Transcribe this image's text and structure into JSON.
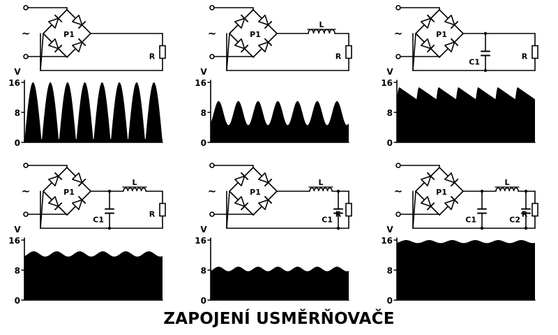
{
  "caption": "ZAPOJENÍ USMĚRŇOVAČE",
  "labels": {
    "tilde": "~",
    "bridge": "P1",
    "inductor": "L",
    "load": "R",
    "cap1": "C1",
    "cap2": "C2",
    "unit": "V",
    "ticks": [
      "16",
      "8",
      "0"
    ]
  },
  "colors": {
    "ink": "#000000",
    "paper": "#ffffff"
  },
  "panels": [
    {
      "id": "bridge-only",
      "inductor": false,
      "cap_before_inductor": false,
      "cap_after_inductor": false,
      "waveform": "full-wave",
      "mean": 8,
      "ripple": 8,
      "cycles": 8
    },
    {
      "id": "bridge-l",
      "inductor": true,
      "cap_before_inductor": false,
      "cap_after_inductor": false,
      "waveform": "sine",
      "mean": 7.8,
      "ripple": 3.2,
      "cycles": 7
    },
    {
      "id": "bridge-c",
      "inductor": false,
      "cap_before_inductor": true,
      "cap_after_inductor": false,
      "waveform": "sawtooth",
      "mean": 13.1,
      "ripple": 1.6,
      "cycles": 7
    },
    {
      "id": "bridge-c-l",
      "inductor": true,
      "cap_before_inductor": true,
      "cap_after_inductor": false,
      "waveform": "sine",
      "mean": 12.3,
      "ripple": 0.7,
      "cycles": 6
    },
    {
      "id": "bridge-l-c",
      "inductor": true,
      "cap_before_inductor": false,
      "cap_after_inductor": true,
      "waveform": "sine",
      "mean": 8.3,
      "ripple": 0.6,
      "cycles": 7
    },
    {
      "id": "bridge-c-l-c",
      "inductor": true,
      "cap_before_inductor": true,
      "cap_after_inductor": true,
      "waveform": "sine",
      "mean": 15.6,
      "ripple": 0.4,
      "cycles": 6
    }
  ]
}
